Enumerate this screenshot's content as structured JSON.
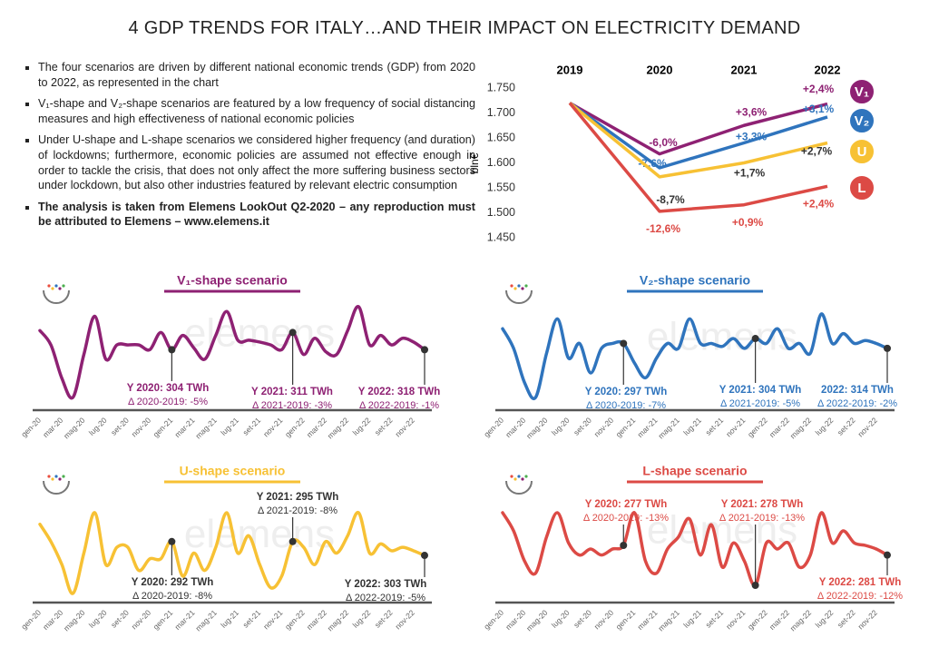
{
  "title": "4 GDP TRENDS FOR ITALY…AND THEIR IMPACT ON ELECTRICITY DEMAND",
  "bullets": [
    "The four scenarios are driven by different national economic trends (GDP) from 2020 to 2022, as represented in the chart",
    "V₁-shape and V₂-shape scenarios are featured by a low frequency of social distancing measures and high effectiveness of national economic policies",
    "Under U-shape and L-shape scenarios we considered higher frequency (and duration) of lockdowns; furthermore, economic policies are assumed not effective enough in order to tackle the crisis, that does not only affect the more suffering business sectors under lockdown, but also other industries featured by relevant electric consumption"
  ],
  "note": "The analysis is taken from Elemens LookOut Q2-2020 – any reproduction must be attributed to Elemens – www.elemens.it",
  "watermark": "elemens",
  "chart_data": [
    {
      "type": "line",
      "categories": [
        "2019",
        "2020",
        "2021",
        "2022"
      ],
      "ylabel": "bln€",
      "ylim": [
        1450,
        1750
      ],
      "yticks": [
        {
          "value": 1750,
          "label": "1.750"
        },
        {
          "value": 1700,
          "label": "1.700"
        },
        {
          "value": 1650,
          "label": "1.650"
        },
        {
          "value": 1600,
          "label": "1.600"
        },
        {
          "value": 1550,
          "label": "1.550"
        },
        {
          "value": 1500,
          "label": "1.500"
        },
        {
          "value": 1450,
          "label": "1.450"
        }
      ],
      "series": [
        {
          "name": "V₁",
          "color": "#8e2173",
          "label_color": "#8e2173",
          "values": [
            1720,
            1618,
            1675,
            1718
          ],
          "change_labels": [
            null,
            "-6,0%",
            "+3,6%",
            "+2,4%"
          ]
        },
        {
          "name": "V₂",
          "color": "#2f74bd",
          "label_color": "#2f74bd",
          "values": [
            1720,
            1590,
            1640,
            1692
          ],
          "change_labels": [
            null,
            "-7,6%",
            "+3,3%",
            "+3,1%"
          ]
        },
        {
          "name": "U",
          "color": "#f7c134",
          "label_color": "#333333",
          "values": [
            1720,
            1572,
            1600,
            1640
          ],
          "change_labels": [
            null,
            "-8,7%",
            "+1,7%",
            "+2,7%"
          ]
        },
        {
          "name": "L",
          "color": "#dc4a45",
          "label_color": "#dc4a45",
          "values": [
            1720,
            1503,
            1516,
            1553
          ],
          "change_labels": [
            null,
            "-12,6%",
            "+0,9%",
            "+2,4%"
          ]
        }
      ]
    },
    {
      "type": "line",
      "title": "V₁-shape scenario",
      "color": "#8e2173",
      "label_color": "#8e2173",
      "categories": [
        "gen-20",
        null,
        "mar-20",
        null,
        "mag-20",
        null,
        "lug-20",
        null,
        "set-20",
        null,
        "nov-20",
        null,
        "gen-21",
        null,
        "mar-21",
        null,
        "mag-21",
        null,
        "lug-21",
        null,
        "set-21",
        null,
        "nov-21",
        null,
        "gen-22",
        null,
        "mar-22",
        null,
        "mag-22",
        null,
        "lug-22",
        null,
        "set-22",
        null,
        "nov-22",
        null
      ],
      "values": [
        26.0,
        24.5,
        21.0,
        19.0,
        23.5,
        27.5,
        23.0,
        24.5,
        24.5,
        24.5,
        24.0,
        25.8,
        24.0,
        25.5,
        24.2,
        23.0,
        25.5,
        28.0,
        25.0,
        25.0,
        24.8,
        24.5,
        24.0,
        25.8,
        23.5,
        25.2,
        23.8,
        23.5,
        26.0,
        28.5,
        24.5,
        25.5,
        24.5,
        25.2,
        24.8,
        24.0
      ],
      "annotations": [
        {
          "title": "Y 2020: 304 TWh",
          "delta": "Δ 2020-2019: -5%"
        },
        {
          "title": "Y 2021: 311 TWh",
          "delta": "Δ 2021-2019: -3%"
        },
        {
          "title": "Y 2022: 318 TWh",
          "delta": "Δ 2022-2019: -1%"
        }
      ]
    },
    {
      "type": "line",
      "title": "V₂-shape scenario",
      "color": "#2f74bd",
      "label_color": "#2f74bd",
      "categories": [
        "gen-20",
        null,
        "mar-20",
        null,
        "mag-20",
        null,
        "lug-20",
        null,
        "set-20",
        null,
        "nov-20",
        null,
        "gen-21",
        null,
        "mar-21",
        null,
        "mag-21",
        null,
        "lug-21",
        null,
        "set-21",
        null,
        "nov-21",
        null,
        "gen-22",
        null,
        "mar-22",
        null,
        "mag-22",
        null,
        "lug-22",
        null,
        "set-22",
        null,
        "nov-22",
        null
      ],
      "values": [
        26.0,
        24.0,
        20.5,
        19.0,
        23.5,
        27.0,
        23.0,
        24.5,
        21.5,
        24.0,
        24.5,
        24.5,
        22.5,
        21.0,
        23.0,
        24.5,
        24.0,
        27.0,
        24.5,
        24.5,
        24.2,
        25.0,
        24.0,
        25.0,
        24.5,
        26.0,
        24.0,
        24.5,
        23.5,
        27.5,
        24.5,
        25.5,
        24.5,
        24.8,
        24.5,
        24.0
      ],
      "annotations": [
        {
          "title": "Y 2020: 297 TWh",
          "delta": "Δ 2020-2019: -7%"
        },
        {
          "title": "Y 2021: 304 TWh",
          "delta": "Δ 2021-2019: -5%"
        },
        {
          "title": "2022: 314 TWh",
          "delta": "Δ 2022-2019: -2%"
        }
      ]
    },
    {
      "type": "line",
      "title": "U-shape scenario",
      "color": "#f7c134",
      "label_color": "#333333",
      "categories": [
        "gen-20",
        null,
        "mar-20",
        null,
        "mag-20",
        null,
        "lug-20",
        null,
        "set-20",
        null,
        "nov-20",
        null,
        "gen-21",
        null,
        "mar-21",
        null,
        "mag-21",
        null,
        "lug-21",
        null,
        "set-21",
        null,
        "nov-21",
        null,
        "gen-22",
        null,
        "mar-22",
        null,
        "mag-22",
        null,
        "lug-22",
        null,
        "set-22",
        null,
        "nov-22",
        null
      ],
      "values": [
        25.5,
        24.0,
        22.0,
        19.5,
        23.0,
        26.5,
        22.0,
        23.5,
        23.5,
        21.5,
        22.5,
        22.5,
        24.0,
        21.0,
        23.0,
        21.5,
        23.5,
        26.5,
        23.0,
        24.5,
        22.0,
        20.0,
        21.0,
        24.0,
        23.5,
        22.0,
        24.0,
        23.0,
        24.5,
        26.5,
        23.0,
        23.8,
        23.2,
        23.5,
        23.2,
        22.8
      ],
      "annotations": [
        {
          "title": "Y 2020: 292 TWh",
          "delta": "Δ 2020-2019: -8%"
        },
        {
          "title": "Y 2021: 295 TWh",
          "delta": "Δ 2021-2019: -8%"
        },
        {
          "title": "Y 2022: 303 TWh",
          "delta": "Δ 2022-2019: -5%"
        }
      ]
    },
    {
      "type": "line",
      "title": "L-shape scenario",
      "color": "#dc4a45",
      "label_color": "#dc4a45",
      "categories": [
        "gen-20",
        null,
        "mar-20",
        null,
        "mag-20",
        null,
        "lug-20",
        null,
        "set-20",
        null,
        "nov-20",
        null,
        "gen-21",
        null,
        "mar-21",
        null,
        "mag-21",
        null,
        "lug-21",
        null,
        "set-21",
        null,
        "nov-21",
        null,
        "gen-22",
        null,
        "mar-22",
        null,
        "mag-22",
        null,
        "lug-22",
        null,
        "set-22",
        null,
        "nov-22",
        null
      ],
      "values": [
        24.5,
        23.0,
        20.5,
        19.5,
        22.5,
        24.5,
        22.0,
        21.0,
        21.5,
        21.0,
        21.5,
        21.8,
        24.5,
        20.5,
        19.5,
        21.5,
        22.5,
        24.0,
        21.0,
        23.5,
        20.0,
        22.0,
        20.5,
        18.5,
        22.0,
        21.5,
        22.0,
        20.0,
        21.0,
        24.5,
        22.0,
        23.0,
        22.0,
        21.8,
        21.5,
        21.0
      ],
      "annotations": [
        {
          "title": "Y 2020: 277 TWh",
          "delta": "Δ 2020-2019: -13%"
        },
        {
          "title": "Y 2021: 278 TWh",
          "delta": "Δ 2021-2019: -13%"
        },
        {
          "title": "Y 2022: 281 TWh",
          "delta": "Δ 2022-2019: -12%"
        }
      ]
    }
  ]
}
